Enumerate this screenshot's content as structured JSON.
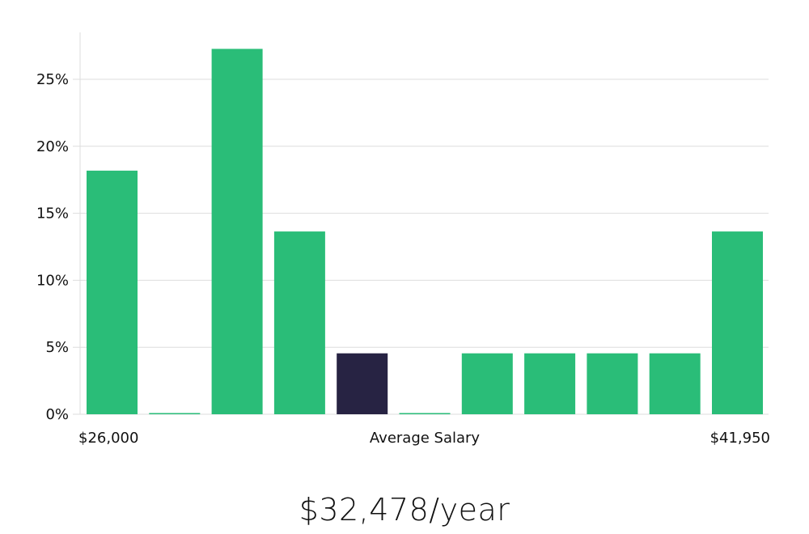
{
  "chart_data": {
    "type": "bar",
    "title": "",
    "xlabel": "Average Salary",
    "ylabel": "",
    "ylim": [
      0,
      27.5
    ],
    "yticks": [
      0,
      5,
      10,
      15,
      20,
      25
    ],
    "ytick_labels": [
      "0%",
      "5%",
      "10%",
      "15%",
      "20%",
      "25%"
    ],
    "x_range_labels": {
      "min": "$26,000",
      "max": "$41,950"
    },
    "values": [
      18.18,
      0,
      27.27,
      13.64,
      4.55,
      0,
      4.55,
      4.55,
      4.55,
      4.55,
      13.64
    ],
    "highlight_index": 4,
    "colors": {
      "bar": "#2abd78",
      "highlight": "#272343",
      "grid": "#dddddd",
      "axis": "#dddddd"
    }
  },
  "summary": {
    "average_salary": "$32,478/year"
  }
}
